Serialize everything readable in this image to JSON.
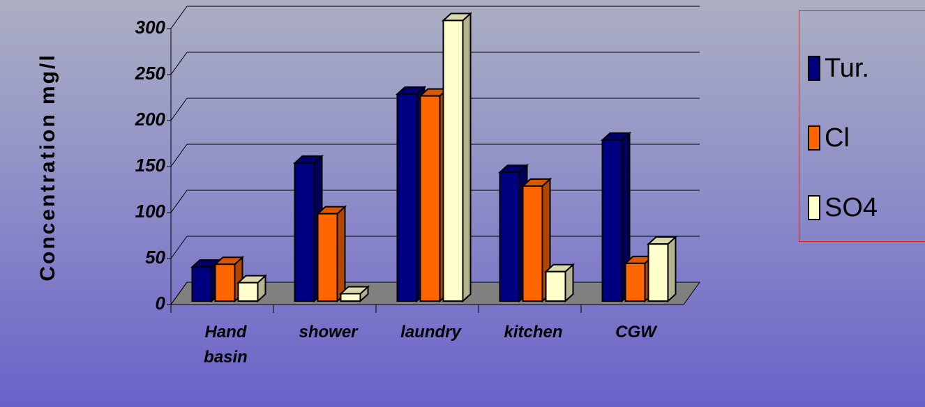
{
  "chart_data": {
    "type": "bar3d",
    "y_label": "Concentration mg/l",
    "categories": [
      "Hand basin",
      "shower",
      "laundry",
      "kitchen",
      "CGW"
    ],
    "series": [
      {
        "name": "Tur.",
        "color": "#000080",
        "values": [
          37,
          150,
          225,
          140,
          175
        ]
      },
      {
        "name": "Cl",
        "color": "#ff6600",
        "values": [
          40,
          95,
          223,
          125,
          41
        ]
      },
      {
        "name": "SO4",
        "color": "#ffffcc",
        "values": [
          20,
          8,
          305,
          32,
          62
        ]
      }
    ],
    "ylim": [
      0,
      300
    ],
    "yticks": [
      0,
      50,
      100,
      150,
      200,
      250,
      300
    ],
    "grid": true
  }
}
